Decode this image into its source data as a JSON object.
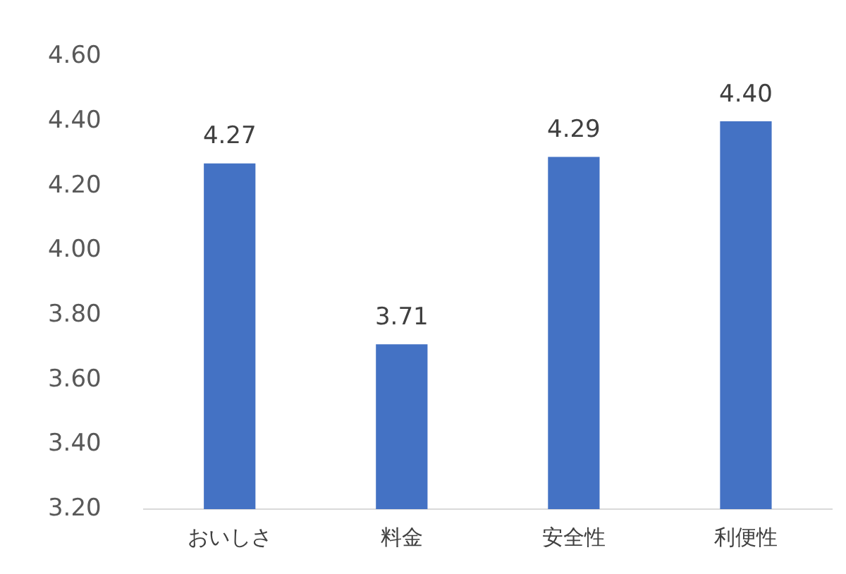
{
  "chart_data": {
    "type": "bar",
    "categories": [
      "おいしさ",
      "料金",
      "安全性",
      "利便性"
    ],
    "values": [
      4.27,
      3.71,
      4.29,
      4.4
    ],
    "color": "#4472c4",
    "value_labels": [
      "4.27",
      "3.71",
      "4.29",
      "4.40"
    ],
    "ylim": [
      3.2,
      4.6
    ],
    "yticks": [
      {
        "value": 3.2,
        "label": "3.20"
      },
      {
        "value": 3.4,
        "label": "3.40"
      },
      {
        "value": 3.6,
        "label": "3.60"
      },
      {
        "value": 3.8,
        "label": "3.80"
      },
      {
        "value": 4.0,
        "label": "4.00"
      },
      {
        "value": 4.2,
        "label": "4.20"
      },
      {
        "value": 4.4,
        "label": "4.40"
      },
      {
        "value": 4.6,
        "label": "4.60"
      }
    ],
    "grid": false,
    "legend": false
  }
}
